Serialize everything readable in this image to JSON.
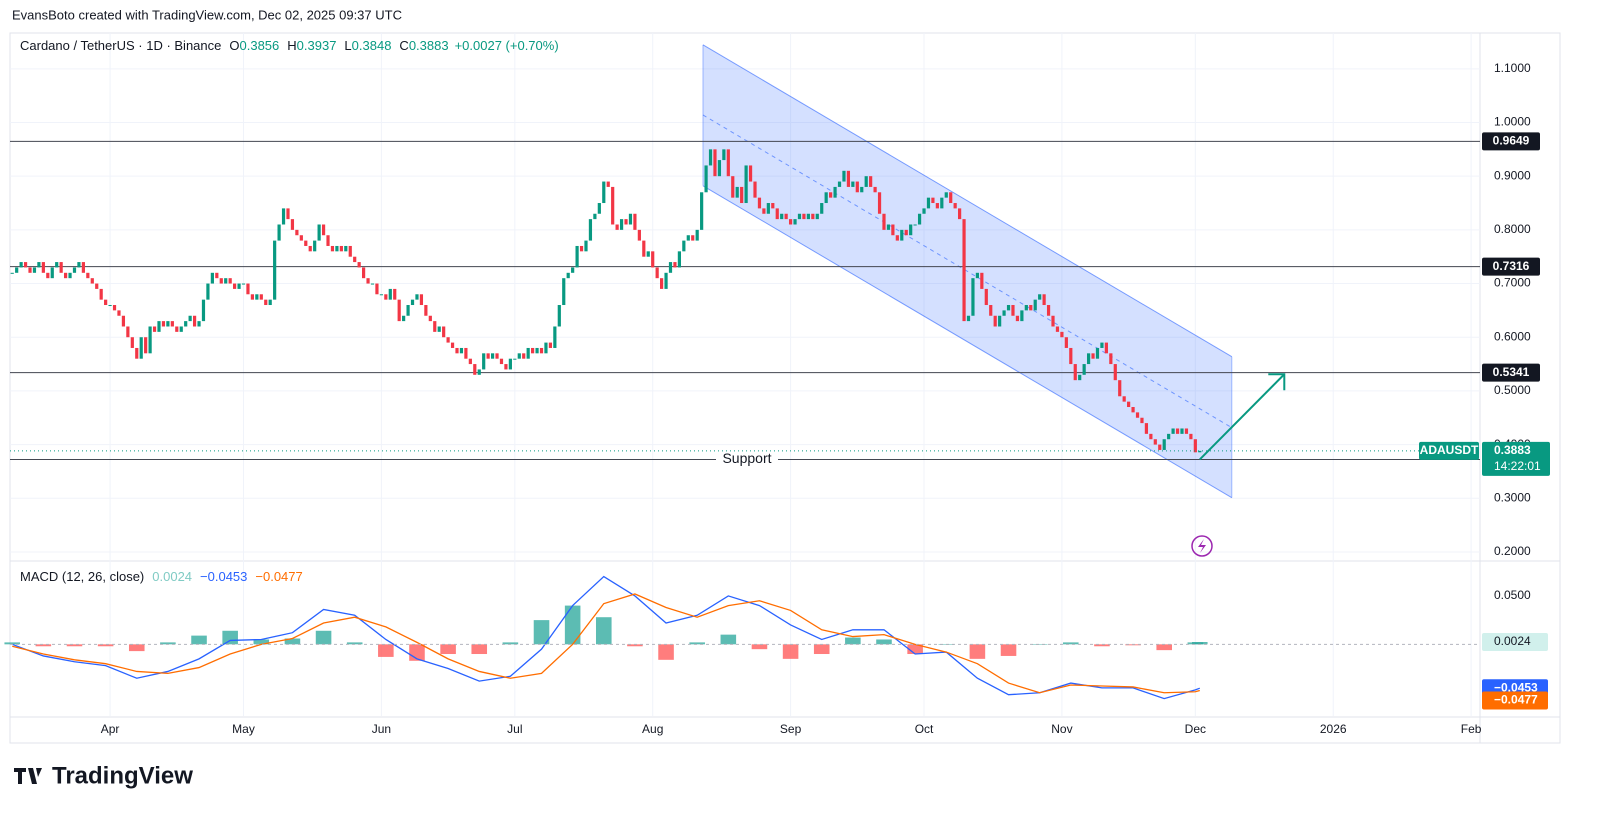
{
  "header": "EvansBoto created with TradingView.com, Dec 02, 2025 09:37 UTC",
  "footer": "TradingView",
  "chart_data": [
    {
      "type": "candlestick",
      "title": "Cardano / TetherUS · 1D · Binance",
      "ohlc": [
        {
          "label": "O",
          "value": 0.3856
        },
        {
          "label": "H",
          "value": 0.3937
        },
        {
          "label": "L",
          "value": 0.3848
        },
        {
          "label": "C",
          "value": 0.3883
        }
      ],
      "change": "+0.0027 (+0.70%)",
      "symbol": "ADAUSDT",
      "countdown": "14:22:01",
      "color_up": "#089981",
      "color_down": "#f23645",
      "values": [
        0.72,
        0.73,
        0.74,
        0.73,
        0.72,
        0.73,
        0.74,
        0.72,
        0.71,
        0.73,
        0.74,
        0.72,
        0.71,
        0.72,
        0.73,
        0.74,
        0.72,
        0.71,
        0.7,
        0.69,
        0.67,
        0.66,
        0.66,
        0.65,
        0.64,
        0.62,
        0.6,
        0.58,
        0.56,
        0.6,
        0.57,
        0.62,
        0.61,
        0.63,
        0.62,
        0.63,
        0.62,
        0.61,
        0.62,
        0.63,
        0.64,
        0.62,
        0.63,
        0.67,
        0.7,
        0.72,
        0.71,
        0.7,
        0.71,
        0.7,
        0.69,
        0.7,
        0.7,
        0.68,
        0.67,
        0.68,
        0.67,
        0.66,
        0.67,
        0.78,
        0.81,
        0.84,
        0.82,
        0.8,
        0.79,
        0.78,
        0.77,
        0.76,
        0.78,
        0.81,
        0.79,
        0.77,
        0.76,
        0.77,
        0.76,
        0.77,
        0.75,
        0.74,
        0.73,
        0.71,
        0.7,
        0.7,
        0.68,
        0.68,
        0.67,
        0.69,
        0.67,
        0.63,
        0.64,
        0.66,
        0.67,
        0.68,
        0.66,
        0.64,
        0.63,
        0.61,
        0.62,
        0.6,
        0.59,
        0.58,
        0.57,
        0.58,
        0.56,
        0.55,
        0.53,
        0.54,
        0.57,
        0.56,
        0.57,
        0.56,
        0.55,
        0.54,
        0.56,
        0.56,
        0.57,
        0.56,
        0.58,
        0.57,
        0.58,
        0.57,
        0.59,
        0.58,
        0.62,
        0.66,
        0.71,
        0.72,
        0.73,
        0.77,
        0.76,
        0.78,
        0.82,
        0.83,
        0.85,
        0.89,
        0.88,
        0.81,
        0.8,
        0.82,
        0.81,
        0.83,
        0.8,
        0.78,
        0.75,
        0.76,
        0.73,
        0.71,
        0.69,
        0.72,
        0.74,
        0.73,
        0.76,
        0.78,
        0.79,
        0.78,
        0.8,
        0.87,
        0.92,
        0.95,
        0.9,
        0.93,
        0.95,
        0.9,
        0.86,
        0.88,
        0.85,
        0.92,
        0.89,
        0.86,
        0.84,
        0.83,
        0.85,
        0.84,
        0.82,
        0.83,
        0.82,
        0.81,
        0.82,
        0.83,
        0.82,
        0.83,
        0.82,
        0.83,
        0.85,
        0.87,
        0.86,
        0.88,
        0.89,
        0.91,
        0.88,
        0.89,
        0.87,
        0.88,
        0.9,
        0.88,
        0.87,
        0.83,
        0.8,
        0.81,
        0.79,
        0.78,
        0.8,
        0.79,
        0.81,
        0.81,
        0.83,
        0.84,
        0.86,
        0.85,
        0.84,
        0.86,
        0.87,
        0.85,
        0.84,
        0.82,
        0.63,
        0.64,
        0.71,
        0.72,
        0.69,
        0.66,
        0.64,
        0.62,
        0.64,
        0.65,
        0.66,
        0.64,
        0.63,
        0.65,
        0.66,
        0.65,
        0.67,
        0.68,
        0.66,
        0.64,
        0.62,
        0.61,
        0.6,
        0.58,
        0.55,
        0.52,
        0.53,
        0.55,
        0.57,
        0.56,
        0.58,
        0.59,
        0.57,
        0.55,
        0.52,
        0.49,
        0.48,
        0.47,
        0.46,
        0.45,
        0.44,
        0.42,
        0.41,
        0.4,
        0.39,
        0.41,
        0.42,
        0.43,
        0.42,
        0.43,
        0.42,
        0.41,
        0.3856,
        0.3883
      ],
      "xlim": [
        -0.5,
        330
      ],
      "xticks": [
        {
          "value": 22,
          "label": "Apr"
        },
        {
          "value": 52,
          "label": "May"
        },
        {
          "value": 83,
          "label": "Jun"
        },
        {
          "value": 113,
          "label": "Jul"
        },
        {
          "value": 144,
          "label": "Aug"
        },
        {
          "value": 175,
          "label": "Sep"
        },
        {
          "value": 205,
          "label": "Oct"
        },
        {
          "value": 236,
          "label": "Nov"
        },
        {
          "value": 266,
          "label": "Dec"
        },
        {
          "value": 297,
          "label": "2026"
        },
        {
          "value": 328,
          "label": "Feb"
        }
      ],
      "ylim": [
        0.185,
        1.163
      ],
      "yticks": [
        {
          "value": 0.2,
          "label": "0.2000"
        },
        {
          "value": 0.3,
          "label": "0.3000"
        },
        {
          "value": 0.4,
          "label": "0.4000"
        },
        {
          "value": 0.5,
          "label": "0.5000"
        },
        {
          "value": 0.6,
          "label": "0.6000"
        },
        {
          "value": 0.7,
          "label": "0.7000"
        },
        {
          "value": 0.8,
          "label": "0.8000"
        },
        {
          "value": 0.9,
          "label": "0.9000"
        },
        {
          "value": 1.0,
          "label": "1.0000"
        },
        {
          "value": 1.1,
          "label": "1.1000"
        }
      ],
      "levels": [
        0.9649,
        0.7316,
        0.5341,
        0.3723
      ],
      "support_label": "Support",
      "channel": {
        "x": [
          155.3,
          274.2
        ],
        "upper": [
          1.1447,
          0.5637
        ],
        "mid": [
          1.014,
          0.4315
        ],
        "lower": [
          0.8821,
          0.3011
        ],
        "color": "#2962ff"
      },
      "projection": {
        "x": [
          267,
          286
        ],
        "y": [
          0.3723,
          0.531
        ],
        "color": "#089981"
      },
      "grid": true
    },
    {
      "type": "macd",
      "title": "MACD (12, 26, close)",
      "x": [
        0,
        7,
        14,
        21,
        28,
        35,
        42,
        49,
        56,
        63,
        70,
        77,
        84,
        91,
        98,
        105,
        112,
        119,
        126,
        133,
        140,
        147,
        154,
        161,
        168,
        175,
        182,
        189,
        196,
        203,
        210,
        217,
        224,
        231,
        238,
        245,
        252,
        259,
        266,
        267
      ],
      "series": [
        {
          "type": "histogram",
          "color": "#26a69a",
          "color_negative": "#ff5252",
          "values": [
            0.002,
            -0.002,
            -0.002,
            -0.002,
            -0.007,
            0.002,
            0.009,
            0.014,
            0.005,
            0.006,
            0.014,
            0.002,
            -0.013,
            -0.017,
            -0.01,
            -0.01,
            0.002,
            0.025,
            0.04,
            0.028,
            -0.002,
            -0.016,
            0.002,
            0.01,
            -0.005,
            -0.015,
            -0.01,
            0.007,
            0.005,
            -0.01,
            0.0,
            -0.015,
            -0.012,
            0.0,
            0.002,
            -0.002,
            -0.001,
            -0.006,
            0.002,
            0.0024
          ]
        },
        {
          "type": "line",
          "color": "#2962ff",
          "values": [
            0,
            -0.012,
            -0.018,
            -0.022,
            -0.035,
            -0.028,
            -0.015,
            0.004,
            0.005,
            0.012,
            0.036,
            0.03,
            0.005,
            -0.015,
            -0.025,
            -0.038,
            -0.033,
            -0.005,
            0.04,
            0.07,
            0.05,
            0.022,
            0.03,
            0.05,
            0.04,
            0.02,
            0.005,
            0.015,
            0.015,
            -0.01,
            -0.008,
            -0.035,
            -0.052,
            -0.05,
            -0.04,
            -0.045,
            -0.045,
            -0.056,
            -0.047,
            -0.0453
          ]
        },
        {
          "type": "line",
          "color": "#ff6d00",
          "values": [
            -0.002,
            -0.01,
            -0.016,
            -0.02,
            -0.028,
            -0.03,
            -0.024,
            -0.01,
            0.0,
            0.006,
            0.022,
            0.028,
            0.018,
            0.002,
            -0.015,
            -0.028,
            -0.035,
            -0.03,
            0.0,
            0.042,
            0.052,
            0.038,
            0.028,
            0.04,
            0.045,
            0.035,
            0.015,
            0.008,
            0.01,
            0.0,
            -0.008,
            -0.02,
            -0.04,
            -0.05,
            -0.042,
            -0.043,
            -0.044,
            -0.05,
            -0.049,
            -0.0477
          ]
        }
      ],
      "legend_values": [
        0.0024,
        {
          "value": -0.0453,
          "label": "−0.0453"
        },
        {
          "value": -0.0477,
          "label": "−0.0477"
        }
      ],
      "legend_colors": [
        "#80cbc4",
        "#2962ff",
        "#ff6d00"
      ],
      "ylim": [
        -0.074,
        0.085
      ],
      "yticks": [
        {
          "value": 0.05,
          "label": "0.0500"
        }
      ]
    }
  ]
}
